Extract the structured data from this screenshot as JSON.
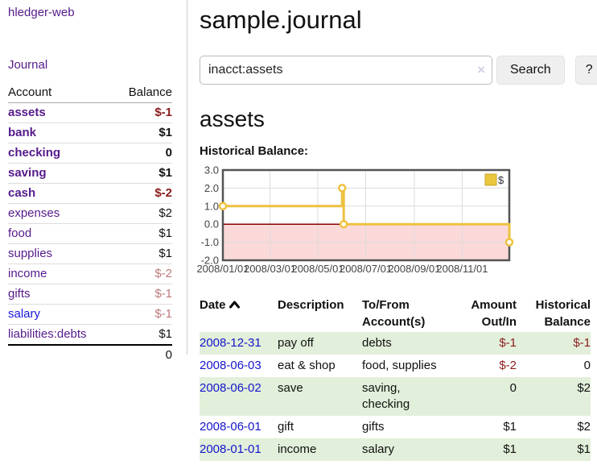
{
  "sidebar": {
    "brand": "hledger-web",
    "journal_label": "Journal",
    "accounts_table": {
      "account_header": "Account",
      "balance_header": "Balance",
      "rows": [
        {
          "name": "assets",
          "depth": 1,
          "bold": true,
          "balance": "$-1",
          "balance_style": "neg-strong"
        },
        {
          "name": "bank",
          "depth": 2,
          "bold": true,
          "balance": "$1",
          "balance_style": "pos"
        },
        {
          "name": "checking",
          "depth": 3,
          "bold": true,
          "balance": "0",
          "balance_style": "pos"
        },
        {
          "name": "saving",
          "depth": 3,
          "bold": true,
          "balance": "$1",
          "balance_style": "pos"
        },
        {
          "name": "cash",
          "depth": 2,
          "bold": true,
          "balance": "$-2",
          "balance_style": "neg-strong"
        },
        {
          "name": "expenses",
          "depth": 1,
          "bold": false,
          "balance": "$2",
          "balance_style": "pos"
        },
        {
          "name": "food",
          "depth": 2,
          "bold": false,
          "balance": "$1",
          "balance_style": "pos"
        },
        {
          "name": "supplies",
          "depth": 2,
          "bold": false,
          "balance": "$1",
          "balance_style": "pos"
        },
        {
          "name": "income",
          "depth": 1,
          "bold": false,
          "balance": "$-2",
          "balance_style": "neg-soft"
        },
        {
          "name": "gifts",
          "depth": 2,
          "bold": false,
          "balance": "$-1",
          "balance_style": "neg-soft"
        },
        {
          "name": "salary",
          "depth": 2,
          "bold": false,
          "balance": "$-1",
          "balance_style": "neg-soft",
          "link_style": "unvisited"
        },
        {
          "name": "liabilities:debts",
          "depth": 1,
          "bold": false,
          "balance": "$1",
          "balance_style": "pos"
        }
      ],
      "total": "0"
    }
  },
  "main": {
    "title": "sample.journal",
    "search": {
      "value": "inacct:assets",
      "clear_icon": "×",
      "search_label": "Search",
      "help_label": "?"
    },
    "account_heading": "assets",
    "chart_label": "Historical Balance:"
  },
  "chart_data": {
    "type": "line",
    "title": "Historical Balance",
    "step": true,
    "series": [
      {
        "name": "$",
        "color": "#edc240",
        "points": [
          [
            "2008-01-01",
            1
          ],
          [
            "2008-06-01",
            2
          ],
          [
            "2008-06-03",
            0
          ],
          [
            "2008-12-31",
            -1
          ]
        ]
      }
    ],
    "xlim": [
      "2008-01-01",
      "2008-12-31"
    ],
    "ylim": [
      -2,
      3
    ],
    "x_ticks": [
      "2008/01/01",
      "2008/03/01",
      "2008/05/01",
      "2008/07/01",
      "2008/09/01",
      "2008/11/01"
    ],
    "y_ticks": [
      "3.0",
      "2.0",
      "1.0",
      "0.0",
      "-1.0",
      "-2.0"
    ],
    "grid": true,
    "negative_region_fill": "#fbd9d9",
    "zero_line_color": "#8b0000",
    "legend": {
      "label": "$",
      "position": "top-right",
      "swatch_fill": "#e9c63e",
      "swatch_border": "#c7a62c"
    }
  },
  "register_table": {
    "headers": {
      "date": "Date",
      "description": "Description",
      "accounts": "To/From Account(s)",
      "amount": "Amount Out/In",
      "balance": "Historical Balance"
    },
    "rows": [
      {
        "date": "2008-12-31",
        "description": "pay off",
        "accounts": "debts",
        "amount": "$-1",
        "amount_neg": true,
        "balance": "$-1",
        "balance_neg": true,
        "green": true
      },
      {
        "date": "2008-06-03",
        "description": "eat & shop",
        "accounts": "food, supplies",
        "amount": "$-2",
        "amount_neg": true,
        "balance": "0",
        "balance_neg": false,
        "green": false
      },
      {
        "date": "2008-06-02",
        "description": "save",
        "accounts": "saving, checking",
        "amount": "0",
        "amount_neg": false,
        "balance": "$2",
        "balance_neg": false,
        "green": true
      },
      {
        "date": "2008-06-01",
        "description": "gift",
        "accounts": "gifts",
        "amount": "$1",
        "amount_neg": false,
        "balance": "$2",
        "balance_neg": false,
        "green": false
      },
      {
        "date": "2008-01-01",
        "description": "income",
        "accounts": "salary",
        "amount": "$1",
        "amount_neg": false,
        "balance": "$1",
        "balance_neg": false,
        "green": true
      }
    ]
  }
}
